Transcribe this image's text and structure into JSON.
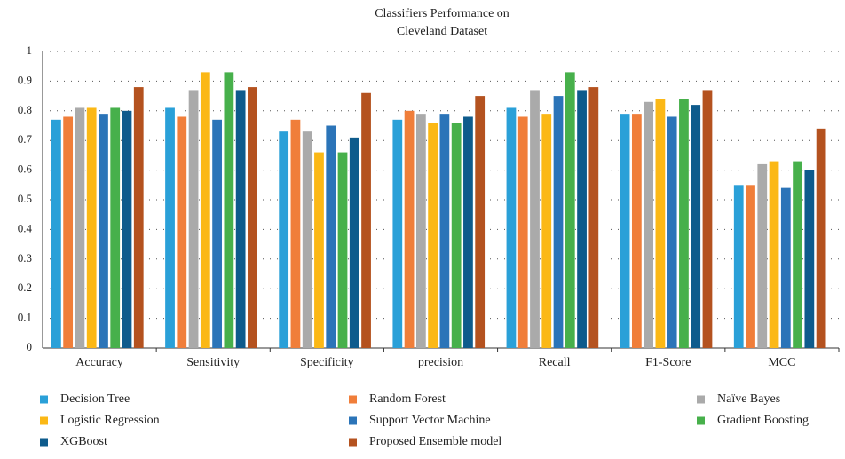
{
  "chart_data": {
    "type": "bar",
    "title": [
      "Classifiers Performance on",
      "Cleveland Dataset"
    ],
    "categories": [
      "Accuracy",
      "Sensitivity",
      "Specificity",
      "precision",
      "Recall",
      "F1-Score",
      "MCC"
    ],
    "series": [
      {
        "name": "Decision Tree",
        "color": "#2aa0d8",
        "values": [
          0.77,
          0.81,
          0.73,
          0.77,
          0.81,
          0.79,
          0.55
        ]
      },
      {
        "name": "Random Forest",
        "color": "#f07e3a",
        "values": [
          0.78,
          0.78,
          0.77,
          0.8,
          0.78,
          0.79,
          0.55
        ]
      },
      {
        "name": "Naïve Bayes",
        "color": "#aaaaaa",
        "values": [
          0.81,
          0.87,
          0.73,
          0.79,
          0.87,
          0.83,
          0.62
        ]
      },
      {
        "name": "Logistic Regression",
        "color": "#fbb816",
        "values": [
          0.81,
          0.93,
          0.66,
          0.76,
          0.79,
          0.84,
          0.63
        ]
      },
      {
        "name": "Support Vector Machine",
        "color": "#2b74b8",
        "values": [
          0.79,
          0.77,
          0.75,
          0.79,
          0.85,
          0.78,
          0.54
        ]
      },
      {
        "name": "Gradient Boosting",
        "color": "#47b04b",
        "values": [
          0.81,
          0.93,
          0.66,
          0.76,
          0.93,
          0.84,
          0.63
        ]
      },
      {
        "name": "XGBoost",
        "color": "#0e5b8c",
        "values": [
          0.8,
          0.87,
          0.71,
          0.78,
          0.87,
          0.82,
          0.6
        ]
      },
      {
        "name": "Proposed Ensemble model",
        "color": "#b4521f",
        "values": [
          0.88,
          0.88,
          0.86,
          0.85,
          0.88,
          0.87,
          0.74
        ]
      }
    ],
    "ylim": [
      0,
      1
    ],
    "yticks": [
      0,
      0.1,
      0.2,
      0.3,
      0.4,
      0.5,
      0.6,
      0.7,
      0.8,
      0.9,
      1
    ],
    "grid": true,
    "legend": "bottom"
  }
}
